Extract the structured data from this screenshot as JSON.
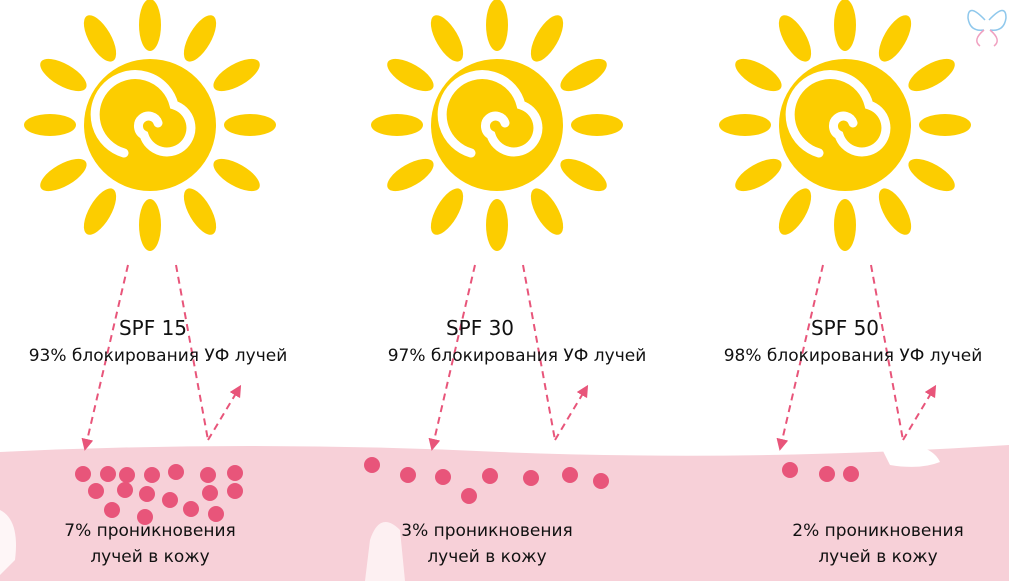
{
  "colors": {
    "sun": "#fccd00",
    "skin": "#f7d0d8",
    "dot": "#e8557a",
    "arrow": "#e8557a"
  },
  "logo": "butterfly-logo",
  "panels": [
    {
      "spf": "SPF 15",
      "blocking": "93% блокирования УФ лучей",
      "penetration_line1": "7% проникновения",
      "penetration_line2": "лучей в кожу",
      "penetration_percent": 7
    },
    {
      "spf": "SPF 30",
      "blocking": "97% блокирования УФ лучей",
      "penetration_line1": "3% проникновения",
      "penetration_line2": "лучей в кожу",
      "penetration_percent": 3
    },
    {
      "spf": "SPF 50",
      "blocking": "98% блокирования УФ лучей",
      "penetration_line1": "2% проникновения",
      "penetration_line2": "лучей в кожу",
      "penetration_percent": 2
    }
  ]
}
